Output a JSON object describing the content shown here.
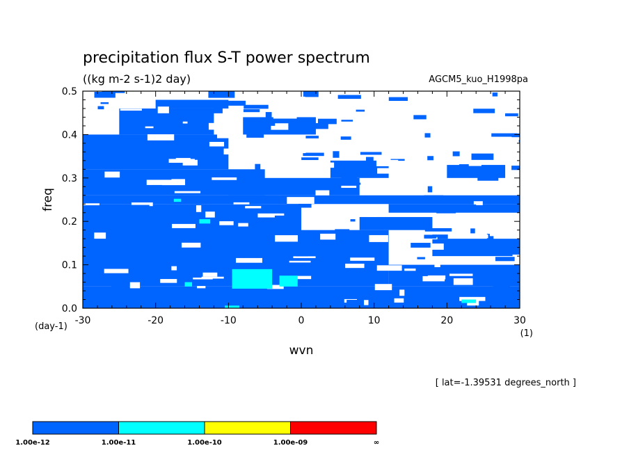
{
  "chart_data": {
    "type": "heatmap",
    "title": "precipitation flux S-T power spectrum",
    "subtitle": "((kg m-2 s-1)2 day)",
    "model_label": "AGCM5_kuo_H1998pa",
    "xlabel": "wvn",
    "ylabel": "freq",
    "x_unit": "(1)",
    "y_unit": "(day-1)",
    "xlim": [
      -30,
      30
    ],
    "ylim": [
      0,
      0.5
    ],
    "x_ticks": [
      "-30",
      "-20",
      "-10",
      "0",
      "10",
      "20",
      "30"
    ],
    "y_ticks": [
      "0.0",
      "0.1",
      "0.2",
      "0.3",
      "0.4",
      "0.5"
    ],
    "annotation": "[ lat=-1.39531 degrees_north ]",
    "colorbar": {
      "labels": [
        "1.00e-12",
        "1.00e-11",
        "1.00e-10",
        "1.00e-09",
        "∞"
      ],
      "colors": [
        "#0064ff",
        "#00ffff",
        "#ffff00",
        "#ff0000"
      ]
    },
    "colors": {
      "level1": "#0064ff",
      "level2": "#00ffff",
      "background": "#ffffff"
    },
    "regions_level1": [
      {
        "x0": -30,
        "x1": 30,
        "y0": 0.0,
        "y1": 0.05
      },
      {
        "x0": -30,
        "x1": 30,
        "y0": 0.24,
        "y1": 0.26
      },
      {
        "x0": -30,
        "x1": 0,
        "y0": 0.05,
        "y1": 0.24
      },
      {
        "x0": -30,
        "x1": -5,
        "y0": 0.26,
        "y1": 0.32
      },
      {
        "x0": -30,
        "x1": -10,
        "y0": 0.32,
        "y1": 0.4
      },
      {
        "x0": 0,
        "x1": 12,
        "y0": 0.05,
        "y1": 0.18
      },
      {
        "x0": 12,
        "x1": 30,
        "y0": 0.05,
        "y1": 0.1
      },
      {
        "x0": 12,
        "x1": 30,
        "y0": 0.22,
        "y1": 0.24
      },
      {
        "x0": -10,
        "x1": 8,
        "y0": 0.26,
        "y1": 0.3
      },
      {
        "x0": -25,
        "x1": -12,
        "y0": 0.4,
        "y1": 0.46
      },
      {
        "x0": -8,
        "x1": 2,
        "y0": 0.4,
        "y1": 0.44
      },
      {
        "x0": 4,
        "x1": 12,
        "y0": 0.3,
        "y1": 0.34
      },
      {
        "x0": 18,
        "x1": 30,
        "y0": 0.12,
        "y1": 0.16
      },
      {
        "x0": -20,
        "x1": -10,
        "y0": 0.46,
        "y1": 0.48
      },
      {
        "x0": 20,
        "x1": 28,
        "y0": 0.3,
        "y1": 0.33
      },
      {
        "x0": 8,
        "x1": 18,
        "y0": 0.18,
        "y1": 0.21
      }
    ],
    "regions_level2": [
      {
        "x0": -9.5,
        "x1": -4,
        "y0": 0.045,
        "y1": 0.09
      },
      {
        "x0": -3,
        "x1": -0.5,
        "y0": 0.05,
        "y1": 0.075
      },
      {
        "x0": -14,
        "x1": -12.5,
        "y0": 0.195,
        "y1": 0.205
      },
      {
        "x0": -17.5,
        "x1": -16.5,
        "y0": 0.245,
        "y1": 0.252
      },
      {
        "x0": 22,
        "x1": 24,
        "y0": 0.012,
        "y1": 0.02
      },
      {
        "x0": -10.5,
        "x1": -8.5,
        "y0": 0.0,
        "y1": 0.006
      },
      {
        "x0": -16,
        "x1": -15,
        "y0": 0.05,
        "y1": 0.06
      }
    ]
  }
}
